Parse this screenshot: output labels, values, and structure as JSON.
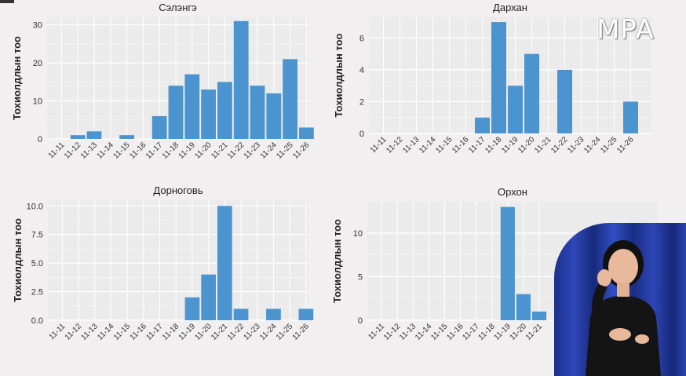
{
  "overlay": {
    "logo_text": "MPA"
  },
  "colors": {
    "bar": "#4c94cf",
    "grid": "#dcdcdc",
    "panel_bg": "#ebebeb"
  },
  "chart_data": [
    {
      "type": "bar",
      "title": "Сэлэнгэ",
      "ylabel": "Тохиолдлын тоо",
      "categories": [
        "11-11",
        "11-12",
        "11-13",
        "11-14",
        "11-15",
        "11-16",
        "11-17",
        "11-18",
        "11-19",
        "11-20",
        "11-21",
        "11-22",
        "11-23",
        "11-24",
        "11-25",
        "11-26"
      ],
      "values": [
        0,
        1,
        2,
        0,
        1,
        0,
        6,
        14,
        17,
        13,
        15,
        31,
        14,
        12,
        21,
        3
      ],
      "ylim": [
        0,
        32
      ],
      "yticks": [
        0,
        10,
        20,
        30
      ],
      "ytick_labels": [
        "0",
        "10",
        "20",
        "30"
      ],
      "grid": true
    },
    {
      "type": "bar",
      "title": "Дархан",
      "ylabel": "Тохиолдлын тоо",
      "categories": [
        "11-11",
        "11-12",
        "11-13",
        "11-14",
        "11-15",
        "11-16",
        "11-17",
        "11-18",
        "11-19",
        "11-20",
        "11-21",
        "11-22",
        "11-23",
        "11-24",
        "11-25",
        "11-26"
      ],
      "values": [
        0,
        0,
        0,
        0,
        0,
        0,
        1,
        7,
        3,
        5,
        0,
        4,
        0,
        0,
        0,
        2
      ],
      "ylim": [
        0,
        7.3
      ],
      "yticks": [
        0,
        2,
        4,
        6
      ],
      "ytick_labels": [
        "0",
        "2",
        "4",
        "6"
      ],
      "grid": true
    },
    {
      "type": "bar",
      "title": "Дорноговь",
      "ylabel": "Тохиолдлын тоо",
      "categories": [
        "11-11",
        "11-12",
        "11-13",
        "11-14",
        "11-15",
        "11-16",
        "11-17",
        "11-18",
        "11-19",
        "11-20",
        "11-21",
        "11-22",
        "11-23",
        "11-24",
        "11-25",
        "11-26"
      ],
      "values": [
        0,
        0,
        0,
        0,
        0,
        0,
        0,
        0,
        2,
        4,
        10,
        1,
        0,
        1,
        0,
        1
      ],
      "ylim": [
        0,
        10.5
      ],
      "yticks": [
        0,
        2.5,
        5,
        7.5,
        10
      ],
      "ytick_labels": [
        "0.0",
        "2.5",
        "5.0",
        "7.5",
        "10.0"
      ],
      "grid": true
    },
    {
      "type": "bar",
      "title": "Орхон",
      "ylabel": "Тохиолдлын тоо",
      "categories": [
        "11-11",
        "11-12",
        "11-13",
        "11-14",
        "11-15",
        "11-16",
        "11-17",
        "11-18",
        "11-19",
        "11-20",
        "11-21"
      ],
      "values": [
        0,
        0,
        0,
        0,
        0,
        0,
        0,
        0,
        13,
        3,
        1
      ],
      "ylim": [
        0,
        13.6
      ],
      "yticks": [
        0,
        5,
        10
      ],
      "ytick_labels": [
        "0",
        "5",
        "10"
      ],
      "grid": true
    }
  ]
}
